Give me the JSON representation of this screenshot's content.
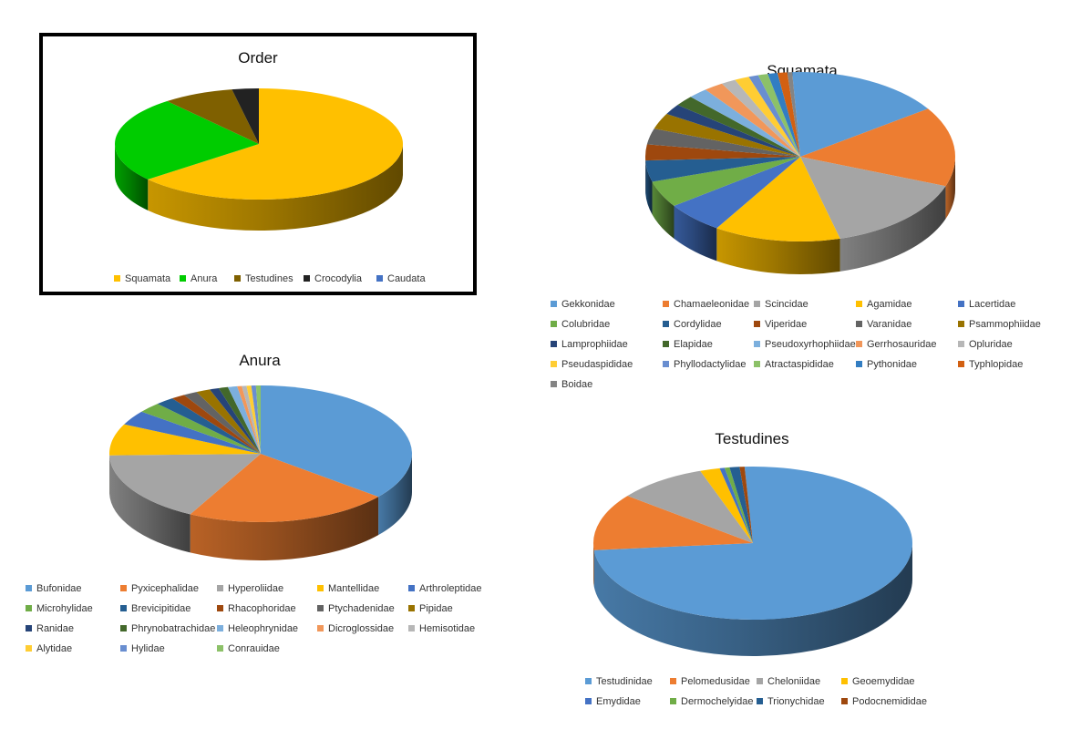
{
  "chart_data": [
    {
      "id": "order",
      "type": "pie",
      "title": "Order",
      "legend_position": "bottom",
      "categories": [
        "Squamata",
        "Anura",
        "Testudines",
        "Crocodylia",
        "Caudata"
      ],
      "values": [
        64,
        25,
        8,
        3,
        0
      ],
      "colors": [
        "#FFC000",
        "#00CC00",
        "#7F6000",
        "#222222",
        "#4472C4"
      ]
    },
    {
      "id": "squamata",
      "type": "pie",
      "title": "Squamata",
      "legend_position": "bottom",
      "categories": [
        "Gekkonidae",
        "Chamaeleonidae",
        "Scincidae",
        "Agamidae",
        "Lacertidae",
        "Colubridae",
        "Cordylidae",
        "Viperidae",
        "Varanidae",
        "Psammophiidae",
        "Lamprophiidae",
        "Elapidae",
        "Pseudoxyrhophiidae",
        "Gerrhosauridae",
        "Opluridae",
        "Pseudaspididae",
        "Phyllodactylidae",
        "Atractaspididae",
        "Pythonidae",
        "Typhlopidae",
        "Boidae"
      ],
      "values": [
        16,
        15,
        15,
        13,
        6,
        5,
        4,
        3,
        3,
        3,
        2,
        2,
        2,
        2,
        1.5,
        1.5,
        1,
        1,
        1,
        1,
        0.5
      ],
      "colors": [
        "#5B9BD5",
        "#ED7D31",
        "#A5A5A5",
        "#FFC000",
        "#4472C4",
        "#70AD47",
        "#255E91",
        "#9E480E",
        "#636363",
        "#997300",
        "#264478",
        "#43682B",
        "#7CAFDD",
        "#F1975A",
        "#B7B7B7",
        "#FFCD33",
        "#698ED0",
        "#8CC168",
        "#327DC2",
        "#D26012",
        "#848484"
      ]
    },
    {
      "id": "anura",
      "type": "pie",
      "title": "Anura",
      "legend_position": "bottom",
      "categories": [
        "Bufonidae",
        "Pyxicephalidae",
        "Hyperoliidae",
        "Mantellidae",
        "Arthroleptidae",
        "Microhylidae",
        "Brevicipitidae",
        "Rhacophoridae",
        "Ptychadenidae",
        "Pipidae",
        "Ranidae",
        "Phrynobatrachidae",
        "Heleophrynidae",
        "Dicroglossidae",
        "Hemisotidae",
        "Alytidae",
        "Hylidae",
        "Conrauidae"
      ],
      "values": [
        36,
        22,
        17,
        7.5,
        3.5,
        2.5,
        2,
        1.5,
        1.5,
        1.5,
        1,
        1,
        1,
        0.5,
        0.5,
        0.5,
        0.5,
        0.5
      ],
      "colors": [
        "#5B9BD5",
        "#ED7D31",
        "#A5A5A5",
        "#FFC000",
        "#4472C4",
        "#70AD47",
        "#255E91",
        "#9E480E",
        "#636363",
        "#997300",
        "#264478",
        "#43682B",
        "#7CAFDD",
        "#F1975A",
        "#B7B7B7",
        "#FFCD33",
        "#698ED0",
        "#8CC168"
      ]
    },
    {
      "id": "testudines",
      "type": "pie",
      "title": "Testudines",
      "legend_position": "bottom",
      "categories": [
        "Testudinidae",
        "Pelomedusidae",
        "Cheloniidae",
        "Geoemydidae",
        "Emydidae",
        "Dermochelyidae",
        "Trionychidae",
        "Podocnemididae"
      ],
      "values": [
        74,
        12,
        9,
        2,
        0.5,
        0.5,
        1,
        0.5
      ],
      "colors": [
        "#5B9BD5",
        "#ED7D31",
        "#A5A5A5",
        "#FFC000",
        "#4472C4",
        "#70AD47",
        "#255E91",
        "#9E480E"
      ]
    }
  ]
}
